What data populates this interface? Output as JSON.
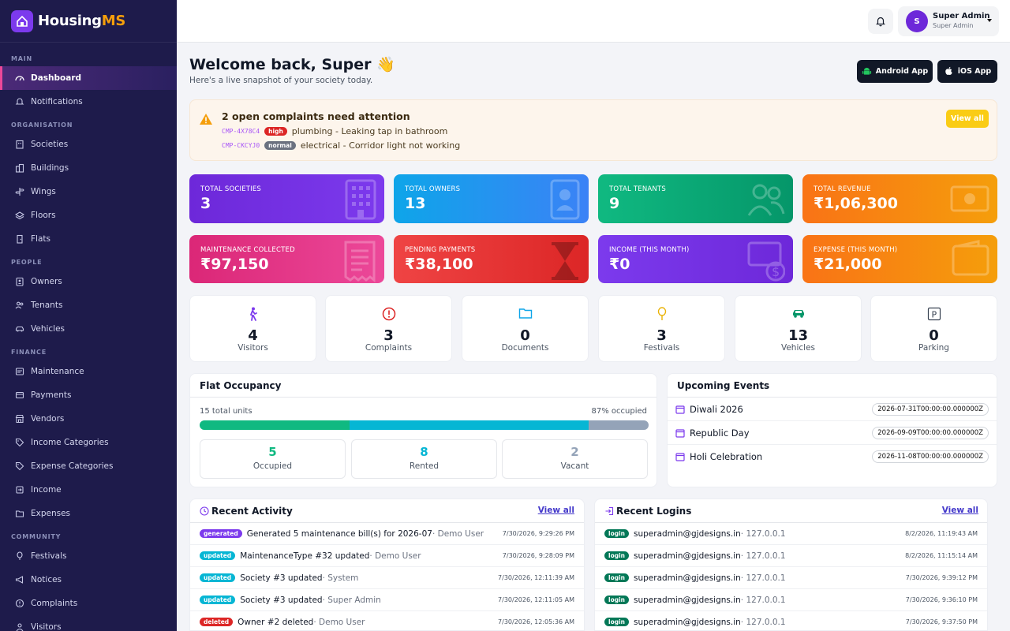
{
  "brand": {
    "name_main": "Housing",
    "name_accent": "MS"
  },
  "sidebar": {
    "sections": [
      {
        "title": "MAIN",
        "items": [
          {
            "label": "Dashboard",
            "icon": "dashboard-icon",
            "active": true
          },
          {
            "label": "Notifications",
            "icon": "bell-icon"
          }
        ]
      },
      {
        "title": "ORGANISATION",
        "items": [
          {
            "label": "Societies",
            "icon": "building-icon"
          },
          {
            "label": "Buildings",
            "icon": "buildings-icon"
          },
          {
            "label": "Wings",
            "icon": "signpost-icon"
          },
          {
            "label": "Floors",
            "icon": "layers-icon"
          },
          {
            "label": "Flats",
            "icon": "door-icon"
          }
        ]
      },
      {
        "title": "PEOPLE",
        "items": [
          {
            "label": "Owners",
            "icon": "id-badge-icon"
          },
          {
            "label": "Tenants",
            "icon": "users-icon"
          },
          {
            "label": "Vehicles",
            "icon": "car-icon"
          }
        ]
      },
      {
        "title": "FINANCE",
        "items": [
          {
            "label": "Maintenance",
            "icon": "receipt-icon"
          },
          {
            "label": "Payments",
            "icon": "wallet-icon"
          },
          {
            "label": "Vendors",
            "icon": "store-icon"
          },
          {
            "label": "Income Categories",
            "icon": "tag-icon"
          },
          {
            "label": "Expense Categories",
            "icon": "tag-icon"
          },
          {
            "label": "Income",
            "icon": "arrow-in-icon"
          },
          {
            "label": "Expenses",
            "icon": "folder-icon"
          }
        ]
      },
      {
        "title": "COMMUNITY",
        "items": [
          {
            "label": "Festivals",
            "icon": "balloon-icon"
          },
          {
            "label": "Notices",
            "icon": "megaphone-icon"
          },
          {
            "label": "Complaints",
            "icon": "alert-icon"
          },
          {
            "label": "Visitors",
            "icon": "person-icon"
          }
        ]
      }
    ]
  },
  "topbar": {
    "avatar_letter": "S",
    "user_name": "Super Admin",
    "user_role": "Super Admin"
  },
  "header": {
    "welcome": "Welcome back, Super 👋",
    "subtitle": "Here's a live snapshot of your society today.",
    "android_label": "Android App",
    "ios_label": "iOS App"
  },
  "alert": {
    "title": "2 open complaints need attention",
    "view_all": "View all",
    "complaints": [
      {
        "code": "CMP-4X78C4",
        "priority": "high",
        "text": "plumbing - Leaking tap in bathroom"
      },
      {
        "code": "CMP-CKCYJ0",
        "priority": "normal",
        "text": "electrical - Corridor light not working"
      }
    ]
  },
  "stats": [
    {
      "label": "TOTAL SOCIETIES",
      "value": "3"
    },
    {
      "label": "TOTAL OWNERS",
      "value": "13"
    },
    {
      "label": "TOTAL TENANTS",
      "value": "9"
    },
    {
      "label": "TOTAL REVENUE",
      "value": "₹1,06,300"
    },
    {
      "label": "MAINTENANCE COLLECTED",
      "value": "₹97,150"
    },
    {
      "label": "PENDING PAYMENTS",
      "value": "₹38,100"
    },
    {
      "label": "INCOME (THIS MONTH)",
      "value": "₹0"
    },
    {
      "label": "EXPENSE (THIS MONTH)",
      "value": "₹21,000"
    }
  ],
  "mini": [
    {
      "value": "4",
      "label": "Visitors",
      "icon": "walking-person-icon"
    },
    {
      "value": "3",
      "label": "Complaints",
      "icon": "alert-circle-icon"
    },
    {
      "value": "0",
      "label": "Documents",
      "icon": "folder-icon"
    },
    {
      "value": "3",
      "label": "Festivals",
      "icon": "balloon-icon"
    },
    {
      "value": "13",
      "label": "Vehicles",
      "icon": "car-icon"
    },
    {
      "value": "0",
      "label": "Parking",
      "icon": "parking-icon"
    }
  ],
  "occupancy": {
    "title": "Flat Occupancy",
    "total_text": "15 total units",
    "pct_text": "87% occupied",
    "occupied": {
      "value": "5",
      "label": "Occupied"
    },
    "rented": {
      "value": "8",
      "label": "Rented"
    },
    "vacant": {
      "value": "2",
      "label": "Vacant"
    },
    "colors": {
      "occupied": "#10b981",
      "rented": "#06b6d4",
      "vacant": "#94a3b8"
    }
  },
  "events": {
    "title": "Upcoming Events",
    "items": [
      {
        "name": "Diwali 2026",
        "date": "2026-07-31T00:00:00.000000Z"
      },
      {
        "name": "Republic Day",
        "date": "2026-09-09T00:00:00.000000Z"
      },
      {
        "name": "Holi Celebration",
        "date": "2026-11-08T00:00:00.000000Z"
      }
    ]
  },
  "activity": {
    "title": "Recent Activity",
    "view_all": "View all",
    "items": [
      {
        "tag": "generated",
        "text": "Generated 5 maintenance bill(s) for 2026-07",
        "who": " · Demo User",
        "time": "7/30/2026, 9:29:26 PM"
      },
      {
        "tag": "updated",
        "text": "MaintenanceType #32 updated",
        "who": " · Demo User",
        "time": "7/30/2026, 9:28:09 PM"
      },
      {
        "tag": "updated",
        "text": "Society #3 updated",
        "who": " · System",
        "time": "7/30/2026, 12:11:39 AM"
      },
      {
        "tag": "updated",
        "text": "Society #3 updated",
        "who": " · Super Admin",
        "time": "7/30/2026, 12:11:05 AM"
      },
      {
        "tag": "deleted",
        "text": "Owner #2 deleted",
        "who": " · Demo User",
        "time": "7/30/2026, 12:05:36 AM"
      }
    ]
  },
  "logins": {
    "title": "Recent Logins",
    "view_all": "View all",
    "items": [
      {
        "tag": "login",
        "email": "superadmin@gjdesigns.in",
        "ip": " · 127.0.0.1",
        "time": "8/2/2026, 11:19:43 AM"
      },
      {
        "tag": "login",
        "email": "superadmin@gjdesigns.in",
        "ip": " · 127.0.0.1",
        "time": "8/2/2026, 11:15:14 AM"
      },
      {
        "tag": "login",
        "email": "superadmin@gjdesigns.in",
        "ip": " · 127.0.0.1",
        "time": "7/30/2026, 9:39:12 PM"
      },
      {
        "tag": "login",
        "email": "superadmin@gjdesigns.in",
        "ip": " · 127.0.0.1",
        "time": "7/30/2026, 9:36:10 PM"
      },
      {
        "tag": "login",
        "email": "superadmin@gjdesigns.in",
        "ip": " · 127.0.0.1",
        "time": "7/30/2026, 9:37:50 PM"
      }
    ]
  }
}
